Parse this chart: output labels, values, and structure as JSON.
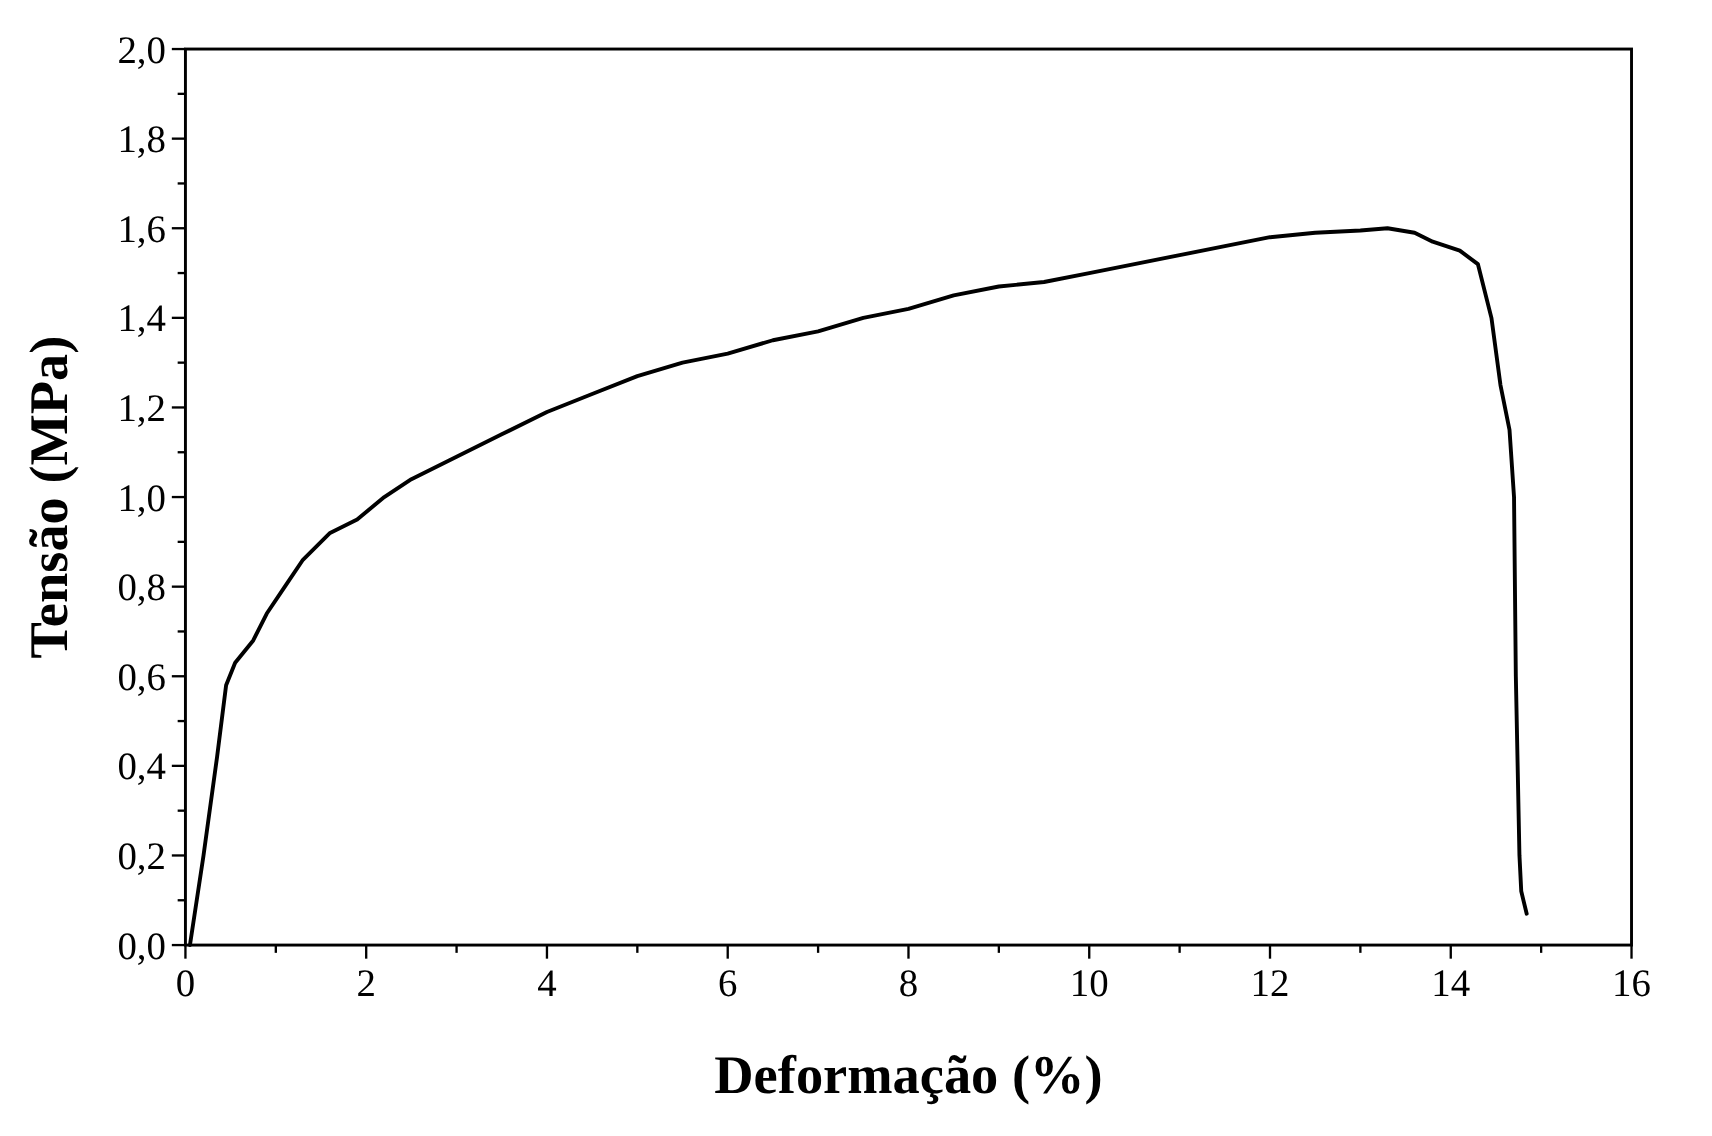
{
  "chart_data": {
    "type": "line",
    "xlabel": "Deformação (%)",
    "ylabel": "Tensão (MPa)",
    "xlim": [
      0,
      16
    ],
    "ylim": [
      0,
      2
    ],
    "xticks": [
      0,
      {
        "value": 1,
        "label": null
      },
      2,
      {
        "value": 3,
        "label": null
      },
      4,
      {
        "value": 5,
        "label": null
      },
      6,
      {
        "value": 7,
        "label": null
      },
      8,
      {
        "value": 9,
        "label": null
      },
      10,
      {
        "value": 11,
        "label": null
      },
      12,
      {
        "value": 13,
        "label": null
      },
      14,
      {
        "value": 15,
        "label": null
      },
      16
    ],
    "yticks": [
      {
        "value": 0,
        "label": "0,0"
      },
      {
        "value": 0.1,
        "label": null
      },
      {
        "value": 0.2,
        "label": "0,2"
      },
      {
        "value": 0.3,
        "label": null
      },
      {
        "value": 0.4,
        "label": "0,4"
      },
      {
        "value": 0.5,
        "label": null
      },
      {
        "value": 0.6,
        "label": "0,6"
      },
      {
        "value": 0.7,
        "label": null
      },
      {
        "value": 0.8,
        "label": "0,8"
      },
      {
        "value": 0.9,
        "label": null
      },
      {
        "value": 1,
        "label": "1,0"
      },
      {
        "value": 1.1,
        "label": null
      },
      {
        "value": 1.2,
        "label": "1,2"
      },
      {
        "value": 1.3,
        "label": null
      },
      {
        "value": 1.4,
        "label": "1,4"
      },
      {
        "value": 1.5,
        "label": null
      },
      {
        "value": 1.6,
        "label": "1,6"
      },
      {
        "value": 1.7,
        "label": null
      },
      {
        "value": 1.8,
        "label": "1,8"
      },
      {
        "value": 1.9,
        "label": null
      },
      {
        "value": 2,
        "label": "2,0"
      }
    ],
    "grid": false,
    "marker": "none",
    "line_style": "solid",
    "series": [
      {
        "color": "#000000",
        "x": [
          0.05,
          0.2,
          0.35,
          0.45,
          0.55,
          0.75,
          0.9,
          1.1,
          1.3,
          1.6,
          1.9,
          2.2,
          2.5,
          3,
          3.5,
          4,
          4.5,
          5,
          5.5,
          6,
          6.5,
          7,
          7.5,
          8,
          8.5,
          9,
          9.5,
          10,
          10.5,
          11,
          11.5,
          12,
          12.5,
          13,
          13.3,
          13.6,
          13.8,
          14.1,
          14.3,
          14.45,
          14.55,
          14.65,
          14.7,
          14.72,
          14.76,
          14.78,
          14.84
        ],
        "values": [
          0,
          0.2,
          0.42,
          0.58,
          0.63,
          0.68,
          0.74,
          0.8,
          0.86,
          0.92,
          0.95,
          1.0,
          1.04,
          1.09,
          1.14,
          1.19,
          1.23,
          1.27,
          1.3,
          1.32,
          1.35,
          1.37,
          1.4,
          1.42,
          1.45,
          1.47,
          1.48,
          1.5,
          1.52,
          1.54,
          1.56,
          1.58,
          1.59,
          1.595,
          1.6,
          1.59,
          1.57,
          1.55,
          1.52,
          1.4,
          1.25,
          1.15,
          1.0,
          0.6,
          0.2,
          0.12,
          0.07
        ]
      }
    ]
  }
}
